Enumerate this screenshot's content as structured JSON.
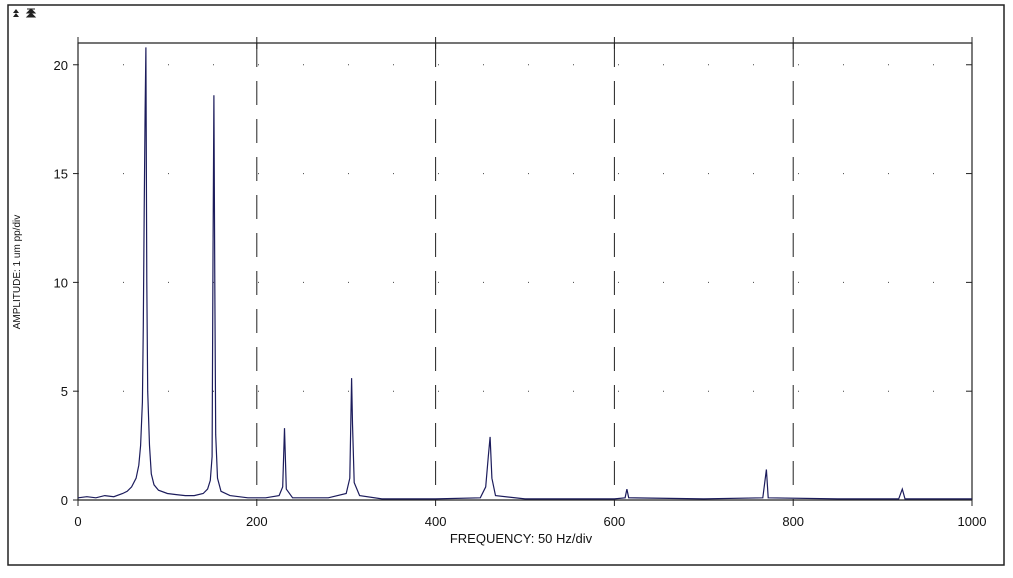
{
  "chart_data": {
    "type": "line",
    "x_label": "FREQUENCY: 50 Hz/div",
    "y_label": "AMPLITUDE: 1 um pp/div",
    "x": [
      0,
      10,
      20,
      30,
      40,
      50,
      55,
      60,
      65,
      68,
      70,
      72,
      73,
      74,
      75,
      76,
      77,
      78,
      80,
      82,
      85,
      90,
      100,
      110,
      120,
      130,
      140,
      145,
      148,
      150,
      151,
      152,
      153,
      154,
      156,
      160,
      170,
      190,
      210,
      225,
      229,
      231,
      233,
      240,
      280,
      300,
      304,
      306,
      307,
      309,
      315,
      340,
      400,
      450,
      456,
      459,
      461,
      463,
      467,
      500,
      600,
      612,
      614,
      616,
      700,
      766,
      770,
      772,
      850,
      918,
      922,
      925,
      1000
    ],
    "values": [
      0.1,
      0.15,
      0.1,
      0.2,
      0.15,
      0.3,
      0.4,
      0.6,
      1.0,
      1.6,
      2.5,
      4.5,
      8,
      13.3,
      17.8,
      20.8,
      10,
      5,
      2.5,
      1.2,
      0.7,
      0.45,
      0.3,
      0.25,
      0.2,
      0.2,
      0.3,
      0.5,
      0.9,
      2,
      11.2,
      18.6,
      10,
      3,
      1,
      0.4,
      0.2,
      0.1,
      0.1,
      0.2,
      0.6,
      3.3,
      0.5,
      0.1,
      0.1,
      0.3,
      1,
      5.6,
      3.5,
      0.8,
      0.2,
      0.05,
      0.05,
      0.1,
      0.6,
      2,
      2.9,
      1,
      0.2,
      0.05,
      0.05,
      0.1,
      0.5,
      0.1,
      0.05,
      0.1,
      1.4,
      0.1,
      0.05,
      0.05,
      0.5,
      0.05,
      0.05
    ],
    "color": "#1c1c5c",
    "xlim": [
      0,
      1000
    ],
    "xticks": [
      0,
      200,
      400,
      600,
      800,
      1000
    ],
    "ylim": [
      0,
      21
    ],
    "yticks": [
      0,
      5,
      10,
      15,
      20
    ],
    "grid": true
  }
}
